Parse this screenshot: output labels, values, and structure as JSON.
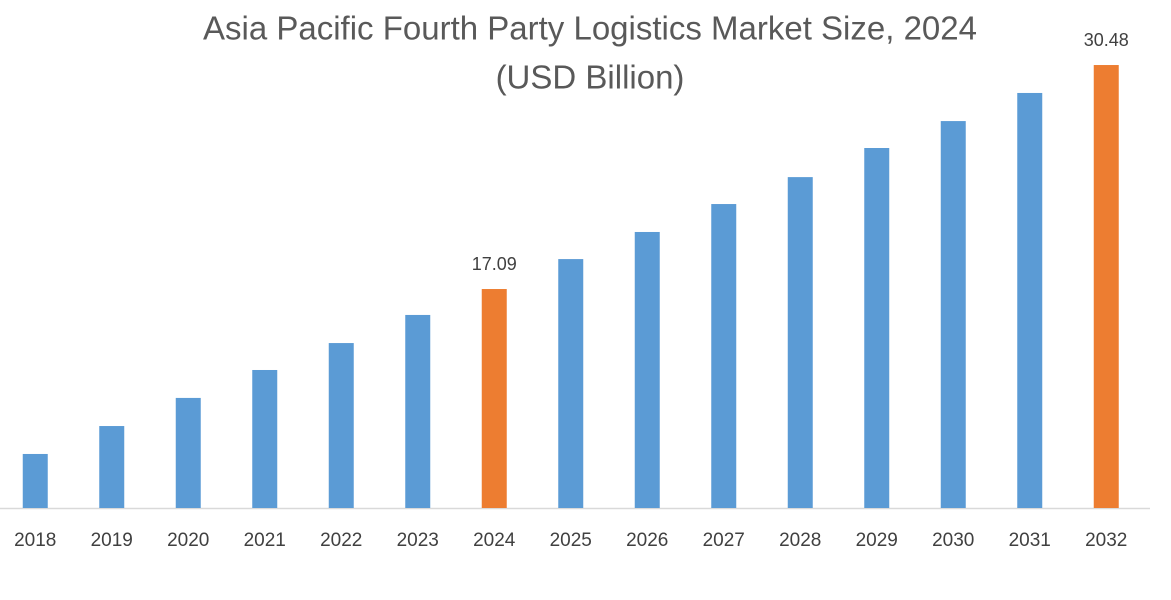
{
  "chart_data": {
    "type": "bar",
    "title": "Asia Pacific Fourth Party Logistics Market Size, 2024",
    "subtitle": "(USD Billion)",
    "categories": [
      "2018",
      "2019",
      "2020",
      "2021",
      "2022",
      "2023",
      "2024",
      "2025",
      "2026",
      "2027",
      "2028",
      "2029",
      "2030",
      "2031",
      "2032"
    ],
    "values": [
      7.23,
      8.9,
      10.58,
      12.25,
      13.86,
      15.54,
      17.09,
      18.88,
      20.5,
      22.17,
      23.78,
      25.52,
      27.13,
      28.81,
      30.48
    ],
    "value_labels": [
      null,
      null,
      null,
      null,
      null,
      null,
      "17.09",
      null,
      null,
      null,
      null,
      null,
      null,
      null,
      "30.48"
    ],
    "colors": [
      "#5b9bd5",
      "#5b9bd5",
      "#5b9bd5",
      "#5b9bd5",
      "#5b9bd5",
      "#5b9bd5",
      "#ed7d31",
      "#5b9bd5",
      "#5b9bd5",
      "#5b9bd5",
      "#5b9bd5",
      "#5b9bd5",
      "#5b9bd5",
      "#5b9bd5",
      "#ed7d31"
    ],
    "ylim": [
      4,
      32
    ]
  }
}
